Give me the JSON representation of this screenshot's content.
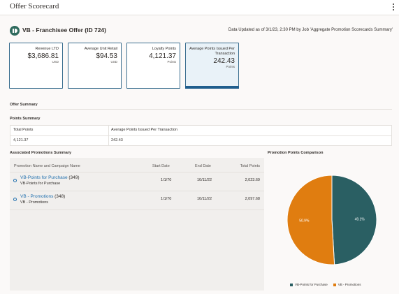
{
  "header": {
    "title": "Offer Scorecard",
    "menu_icon": "kebab-icon"
  },
  "offer": {
    "icon": "offer-icon",
    "title": "VB - Franchisee Offer (ID 724)",
    "data_updated": "Data Updated as of 3/1/23, 2:30 PM by Job 'Aggregate Promotion Scorecards Summary'"
  },
  "cards": [
    {
      "label": "Revenue LTD",
      "value": "$3,686.81",
      "unit": "USD",
      "selected": false
    },
    {
      "label": "Average Unit Retail",
      "value": "$94.53",
      "unit": "USD",
      "selected": false
    },
    {
      "label": "Loyalty Points",
      "value": "4,121.37",
      "unit": "Points",
      "selected": false
    },
    {
      "label": "Average Points Issued Per Transaction",
      "value": "242.43",
      "unit": "Points",
      "selected": true
    }
  ],
  "offer_summary": {
    "title": "Offer Summary"
  },
  "points_summary": {
    "title": "Points Summary",
    "columns": [
      "Total Points",
      "Average Points Issued Per Transaction"
    ],
    "row": [
      "4,121.37",
      "242.43"
    ]
  },
  "promotions": {
    "title": "Associated Promotions Summary",
    "columns": [
      "Promotion Name and Campaign Name",
      "Start Date",
      "End Date",
      "Total Points"
    ],
    "rows": [
      {
        "name": "VB-Points for Purchase",
        "id": "(349)",
        "campaign": "VB-Points for Purchase",
        "start": "1/1/70",
        "end": "10/11/22",
        "points": "2,023.69"
      },
      {
        "name": "VB - Promotions",
        "id": "(348)",
        "campaign": "VB - Promotions",
        "start": "1/1/70",
        "end": "10/11/22",
        "points": "2,097.68"
      }
    ]
  },
  "chart_data": {
    "type": "pie",
    "title": "Promotion Points Comparison",
    "slices": [
      {
        "name": "VB-Points for Purchase",
        "value": 49.1,
        "label": "49.1%",
        "color": "#2a5f63"
      },
      {
        "name": "VB - Promotions",
        "value": 50.9,
        "label": "50.9%",
        "color": "#e07d10"
      }
    ],
    "legend_position": "bottom"
  }
}
